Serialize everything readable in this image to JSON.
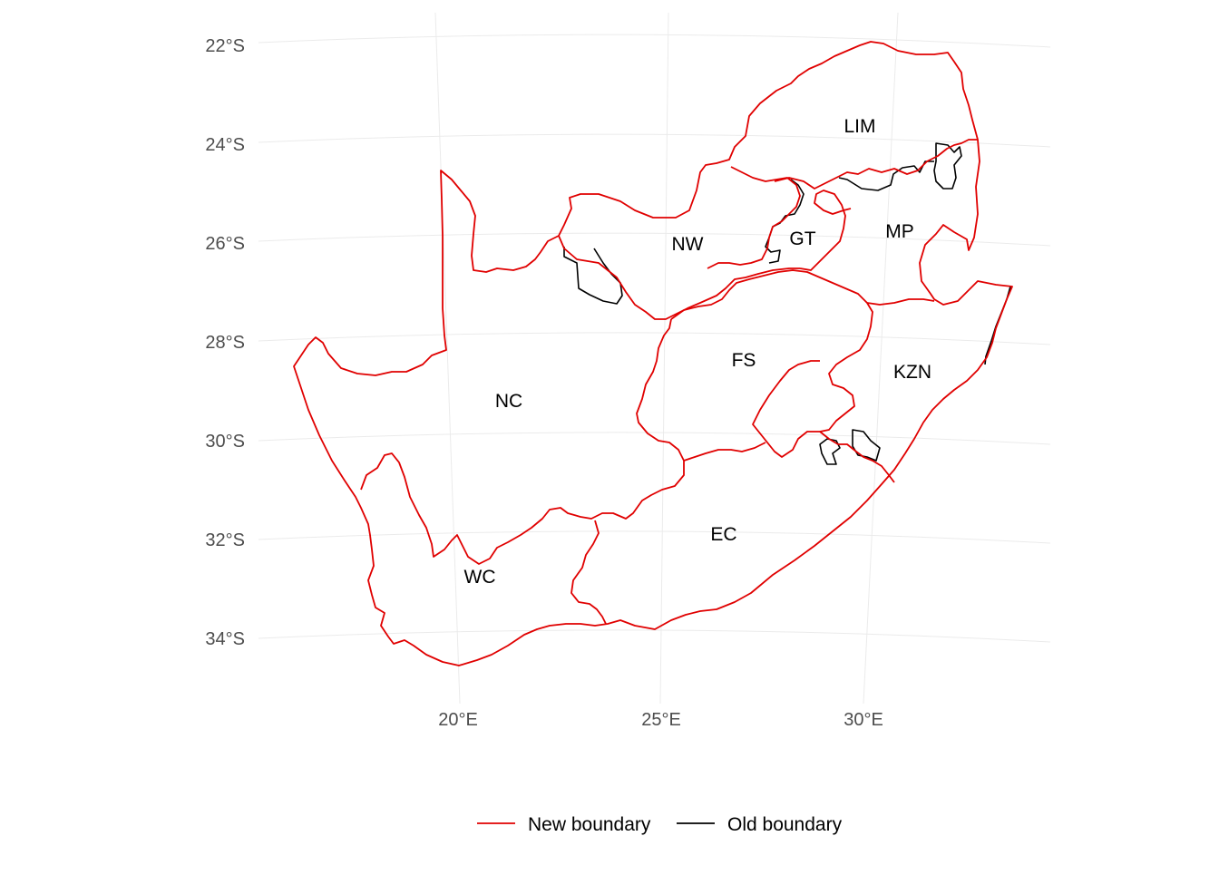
{
  "map": {
    "lat_ticks": [
      "22°S",
      "24°S",
      "26°S",
      "28°S",
      "30°S",
      "32°S",
      "34°S"
    ],
    "lon_ticks": [
      "20°E",
      "25°E",
      "30°E"
    ],
    "regions": [
      {
        "code": "LIM"
      },
      {
        "code": "NW"
      },
      {
        "code": "GT"
      },
      {
        "code": "MP"
      },
      {
        "code": "NC"
      },
      {
        "code": "FS"
      },
      {
        "code": "KZN"
      },
      {
        "code": "EC"
      },
      {
        "code": "WC"
      }
    ],
    "legend": {
      "items": [
        {
          "label": "New boundary",
          "color": "#e00000"
        },
        {
          "label": "Old boundary",
          "color": "#000000"
        }
      ]
    }
  }
}
